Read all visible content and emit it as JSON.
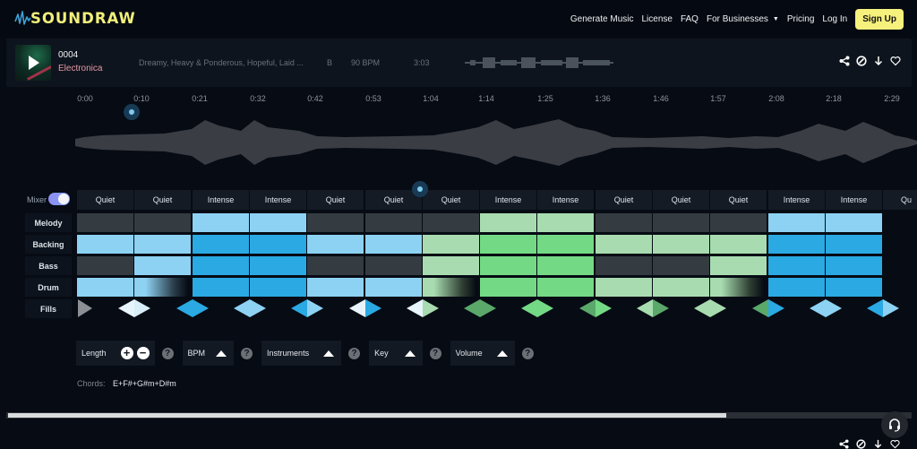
{
  "brand": {
    "name": "SOUNDRAW",
    "logo_icon": "waveform-logo-icon"
  },
  "nav": {
    "links": [
      "Generate Music",
      "License",
      "FAQ",
      "For Businesses",
      "Pricing",
      "Log In"
    ],
    "dropdown_caret": "▼",
    "signup": "Sign Up"
  },
  "track": {
    "number": "0004",
    "genre": "Electronica",
    "moods": "Dreamy, Heavy & Ponderous, Hopeful, Laid ...",
    "key": "B",
    "bpm": "90 BPM",
    "duration": "3:03",
    "actions": [
      "share-icon",
      "link-icon",
      "download-icon",
      "heart-icon"
    ]
  },
  "timeline": {
    "ticks": [
      "0:00",
      "0:10",
      "0:21",
      "0:32",
      "0:42",
      "0:53",
      "1:04",
      "1:14",
      "1:25",
      "1:36",
      "1:46",
      "1:57",
      "2:08",
      "2:18",
      "2:29"
    ],
    "start_marker": "0:10",
    "playhead_marker": "1:04"
  },
  "mixer": {
    "label": "Mixer",
    "enabled": true,
    "rows": [
      "Melody",
      "Backing",
      "Bass",
      "Drum",
      "Fills"
    ],
    "columns": [
      {
        "label": "Quiet",
        "cells": [
          "dark",
          "lb",
          "dark",
          "lb"
        ],
        "fill": [
          "first",
          null
        ]
      },
      {
        "label": "Quiet",
        "cells": [
          "dark",
          "lb",
          "lb",
          "fade-b"
        ],
        "fill": [
          "#e8f4fb",
          "#d8eef9"
        ]
      },
      {
        "label": "Intense",
        "cells": [
          "lb",
          "b",
          "b",
          "b"
        ],
        "fill": [
          "#2aa9e2",
          "#2aa9e2"
        ]
      },
      {
        "label": "Intense",
        "cells": [
          "lb",
          "b",
          "b",
          "b"
        ],
        "fill": [
          "#8dd2f3",
          "#8dd2f3"
        ]
      },
      {
        "label": "Quiet",
        "cells": [
          "dark",
          "lb",
          "dark",
          "lb"
        ],
        "fill": [
          "#2aa9e2",
          "#8dd2f3"
        ]
      },
      {
        "label": "Quiet",
        "cells": [
          "dark",
          "lb",
          "dark",
          "lb"
        ],
        "fill": [
          "#e8f4fb",
          "#2aa9e2"
        ]
      },
      {
        "label": "Quiet",
        "cells": [
          "dark",
          "lg",
          "lg",
          "fade-g"
        ],
        "fill": [
          "#e8f4fb",
          "#a8dcb0"
        ]
      },
      {
        "label": "Intense",
        "cells": [
          "lg",
          "g",
          "g",
          "g"
        ],
        "fill": [
          "#5aa86a",
          "#5aa86a"
        ]
      },
      {
        "label": "Intense",
        "cells": [
          "lg",
          "g",
          "g",
          "g"
        ],
        "fill": [
          "#74d985",
          "#74d985"
        ]
      },
      {
        "label": "Quiet",
        "cells": [
          "dark",
          "lg",
          "dark",
          "lg"
        ],
        "fill": [
          "#5aa86a",
          "#74d985"
        ]
      },
      {
        "label": "Quiet",
        "cells": [
          "dark",
          "lg",
          "dark",
          "lg"
        ],
        "fill": [
          "#a8dcb0",
          "#5aa86a"
        ]
      },
      {
        "label": "Quiet",
        "cells": [
          "dark",
          "lg",
          "lg",
          "fade-g"
        ],
        "fill": [
          "#a8dcb0",
          "#a8dcb0"
        ]
      },
      {
        "label": "Intense",
        "cells": [
          "lb",
          "b",
          "b",
          "b"
        ],
        "fill": [
          "#5aa86a",
          "#2aa9e2"
        ]
      },
      {
        "label": "Intense",
        "cells": [
          "lb",
          "b",
          "b",
          "b"
        ],
        "fill": [
          "#8dd2f3",
          "#8dd2f3"
        ]
      },
      {
        "label": "Qu",
        "cells": [
          "dark",
          "lb",
          "dark",
          "lb"
        ],
        "fill": [
          "#2aa9e2",
          "#8dd2f3"
        ]
      }
    ]
  },
  "controls": {
    "length": "Length",
    "length_plus": "+",
    "length_minus": "−",
    "bpm": "BPM",
    "instruments": "Instruments",
    "key": "Key",
    "volume": "Volume",
    "help": "?"
  },
  "chords": {
    "label": "Chords:",
    "value": "E+F#+G#m+D#m"
  },
  "scrollbar": {
    "thumb_percent": 79
  },
  "colors": {
    "accent_yellow": "#f6f07c",
    "light_blue": "#8dd2f3",
    "blue": "#2aa9e2",
    "light_green": "#a8dcb0",
    "green": "#74d985",
    "dark_cell": "#343b41"
  }
}
